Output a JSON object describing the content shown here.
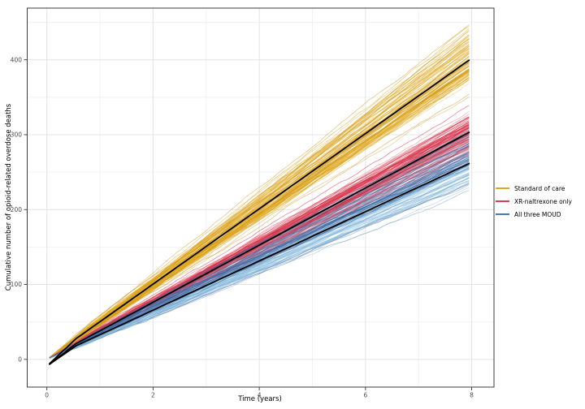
{
  "chart_data": {
    "type": "line",
    "title": "",
    "xlabel": "Time (years)",
    "ylabel": "Cumulative number of opioid-related overdose deaths",
    "xlim": [
      -0.37,
      8.42
    ],
    "ylim": [
      -37,
      469
    ],
    "x_ticks": [
      0,
      2,
      4,
      6,
      8
    ],
    "y_ticks": [
      0,
      100,
      200,
      300,
      400
    ],
    "minor_x": [
      1,
      3,
      5,
      7
    ],
    "minor_y": [
      50,
      150,
      250,
      350,
      450
    ],
    "grid": "on",
    "legend_position": "right-middle",
    "x_range_years": [
      0,
      8
    ],
    "series": [
      {
        "name": "Standard of care",
        "legend_color": "#dfa71e",
        "shades": [
          "#d69c12",
          "#e0a81e",
          "#eab52e",
          "#c8921a"
        ],
        "n_lines": 100,
        "final_mean": 404,
        "final_sd": 20,
        "final_range": [
          352,
          462
        ],
        "mean_line_final": 402,
        "mean_values_by_year": {
          "0": 0,
          "2": 101,
          "4": 201,
          "6": 302,
          "8": 402
        }
      },
      {
        "name": "XR-naltrexone only",
        "legend_color": "#e0394e",
        "shades": [
          "#d42f46",
          "#e2425a",
          "#ec5f70",
          "#c42940"
        ],
        "n_lines": 100,
        "final_mean": 305,
        "final_sd": 15,
        "final_range": [
          276,
          358
        ],
        "mean_line_final": 305,
        "mean_values_by_year": {
          "0": 0,
          "2": 76,
          "4": 152,
          "6": 229,
          "8": 305
        }
      },
      {
        "name": "All three MOUD",
        "legend_color": "#4a76b2",
        "shades": [
          "#3e6da8",
          "#2f5b96",
          "#5580b8"
        ],
        "shades_light": [
          "#8cc0e0",
          "#7bb3d8",
          "#a2cde6"
        ],
        "n_lines": 100,
        "final_mean": 264,
        "final_sd": 19,
        "final_range": [
          208,
          308
        ],
        "mean_line_final": 263,
        "mean_values_by_year": {
          "0": 0,
          "2": 66,
          "4": 132,
          "6": 197,
          "8": 263
        }
      }
    ],
    "mean_line": {
      "color": "#000000",
      "start_dip": 9,
      "width": 1.8
    },
    "sim": {
      "t_start": 0.05,
      "t_end": 8,
      "dt": 0.1,
      "wiggle_sd": 2.0,
      "seed": 42
    }
  },
  "style": {
    "background": "#ffffff",
    "panel_border": "#3c3c3c",
    "grid_major": "#e4e4e4",
    "grid_minor": "#f2f2f2",
    "tick_color": "#333333",
    "tick_label_color": "#4b4b4b",
    "axis_title_color": "#000000"
  }
}
